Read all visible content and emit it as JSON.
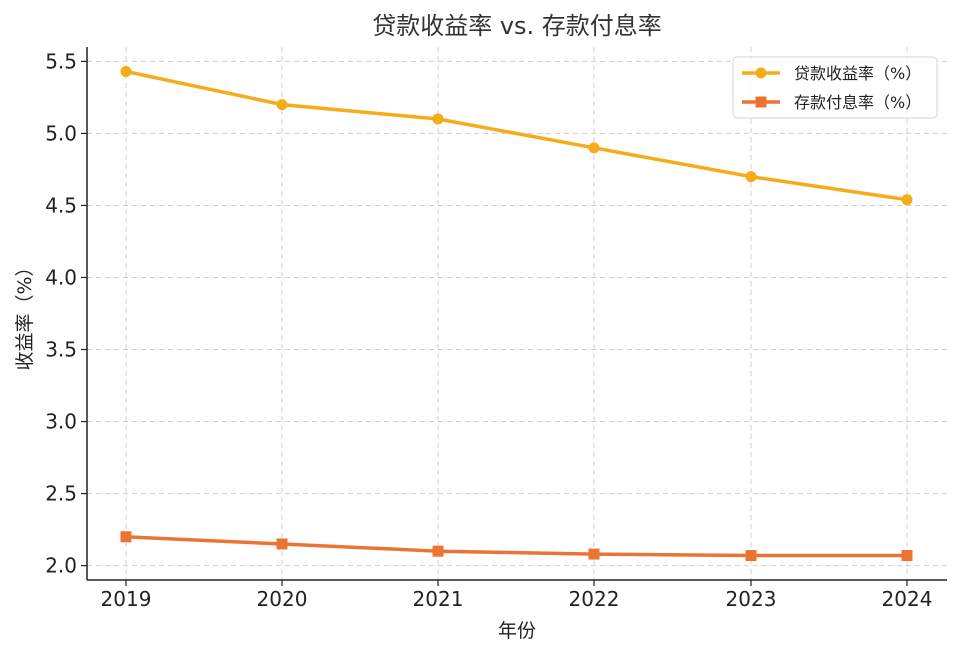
{
  "chart_data": {
    "type": "line",
    "title": "贷款收益率 vs. 存款付息率",
    "xlabel": "年份",
    "ylabel": "收益率（%）",
    "categories": [
      "2019",
      "2020",
      "2021",
      "2022",
      "2023",
      "2024"
    ],
    "ylim": [
      1.9,
      5.6
    ],
    "yticks": [
      2.0,
      2.5,
      3.0,
      3.5,
      4.0,
      4.5,
      5.0,
      5.5
    ],
    "ytick_labels": [
      "2.0",
      "2.5",
      "3.0",
      "3.5",
      "4.0",
      "4.5",
      "5.0",
      "5.5"
    ],
    "grid": true,
    "legend_position": "top-right",
    "series": [
      {
        "name": "贷款收益率（%）",
        "values": [
          5.43,
          5.2,
          5.1,
          4.9,
          4.7,
          4.54
        ],
        "color": "#F5AC18",
        "marker": "circle"
      },
      {
        "name": "存款付息率（%）",
        "values": [
          2.2,
          2.15,
          2.1,
          2.08,
          2.07,
          2.07
        ],
        "color": "#EB7432",
        "marker": "square"
      }
    ]
  }
}
